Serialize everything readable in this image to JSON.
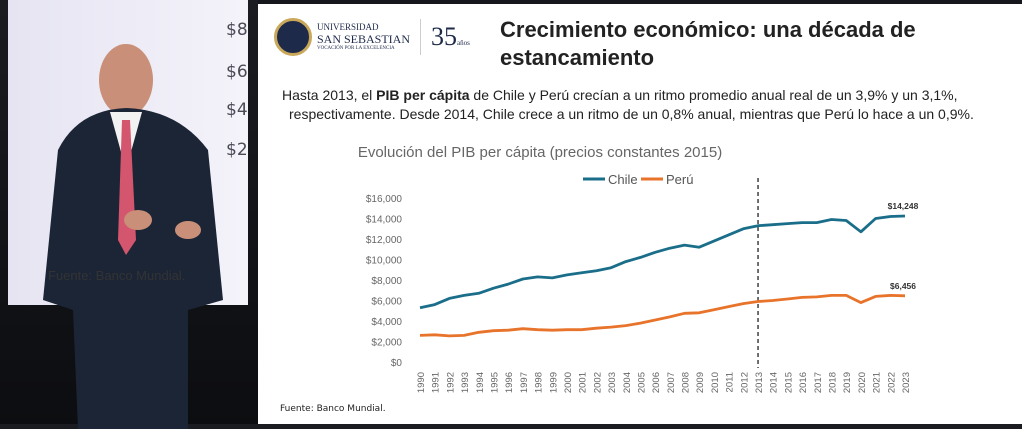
{
  "stage": {
    "screen_ticks": [
      "$8",
      "$6",
      "$4",
      "$2"
    ],
    "screen_source": "Fuente: Banco Mundial."
  },
  "slide": {
    "logo": {
      "line1": "UNIVERSIDAD",
      "line2": "SAN SEBASTIAN",
      "line3": "VOCACIÓN POR LA EXCELENCIA",
      "anniversary": "35",
      "anniversary_suffix": "años"
    },
    "title": "Crecimiento económico: una década de estancamiento",
    "para_pre": "Hasta 2013, el ",
    "para_bold": "PIB per cápita",
    "para_post": " de Chile y Perú crecían a un ritmo promedio anual real de un 3,9% y un 3,1%,",
    "para_line2": "respectivamente. Desde 2014, Chile crece a un ritmo de un 0,8% anual, mientras que Perú lo hace a un 0,9%.",
    "source": "Fuente: Banco Mundial."
  },
  "chart_data": {
    "type": "line",
    "title": "Evolución del PIB per cápita (precios constantes 2015)",
    "x": [
      1990,
      1991,
      1992,
      1993,
      1994,
      1995,
      1996,
      1997,
      1998,
      1999,
      2000,
      2001,
      2002,
      2003,
      2004,
      2005,
      2006,
      2007,
      2008,
      2009,
      2010,
      2011,
      2012,
      2013,
      2014,
      2015,
      2016,
      2017,
      2018,
      2019,
      2020,
      2021,
      2022,
      2023
    ],
    "series": [
      {
        "name": "Chile",
        "color": "#1a6e8a",
        "values": [
          5300,
          5600,
          6200,
          6500,
          6700,
          7200,
          7600,
          8100,
          8300,
          8200,
          8500,
          8700,
          8900,
          9200,
          9800,
          10200,
          10700,
          11100,
          11400,
          11200,
          11800,
          12400,
          13000,
          13300,
          13400,
          13500,
          13600,
          13600,
          13900,
          13800,
          12700,
          14000,
          14200,
          14248
        ],
        "end_label": "$14,248"
      },
      {
        "name": "Perú",
        "color": "#e8732a",
        "values": [
          2600,
          2650,
          2550,
          2600,
          2900,
          3050,
          3100,
          3250,
          3150,
          3100,
          3150,
          3150,
          3300,
          3400,
          3550,
          3800,
          4100,
          4400,
          4750,
          4800,
          5100,
          5400,
          5700,
          5900,
          6000,
          6150,
          6300,
          6350,
          6500,
          6500,
          5800,
          6400,
          6500,
          6456
        ],
        "end_label": "$6,456"
      }
    ],
    "yticks": [
      "$0",
      "$2,000",
      "$4,000",
      "$6,000",
      "$8,000",
      "$10,000",
      "$12,000",
      "$14,000",
      "$16,000"
    ],
    "ylim": [
      0,
      16000
    ],
    "marker_year": 2013,
    "legend_position": "top-center",
    "grid": false
  }
}
